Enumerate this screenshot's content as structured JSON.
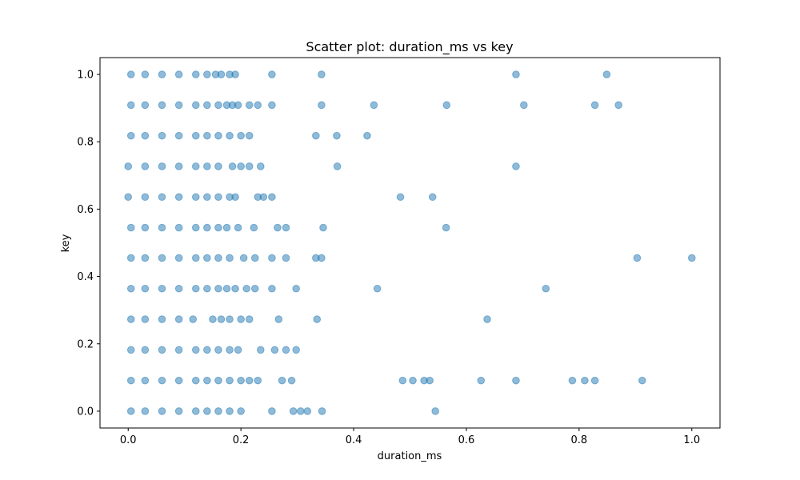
{
  "chart_data": {
    "type": "scatter",
    "title": "Scatter plot: duration_ms vs key",
    "xlabel": "duration_ms",
    "ylabel": "key",
    "xlim": [
      -0.05,
      1.05
    ],
    "ylim": [
      -0.05,
      1.05
    ],
    "xticks": [
      0.0,
      0.2,
      0.4,
      0.6,
      0.8,
      1.0
    ],
    "xtick_labels": [
      "0.0",
      "0.2",
      "0.4",
      "0.6",
      "0.8",
      "1.0"
    ],
    "yticks": [
      0.0,
      0.2,
      0.4,
      0.6,
      0.8,
      1.0
    ],
    "ytick_labels": [
      "0.0",
      "0.2",
      "0.4",
      "0.6",
      "0.8",
      "1.0"
    ],
    "grid": false,
    "marker_color": "#1f77b4",
    "marker_alpha": 0.5,
    "series": [
      {
        "points": [
          {
            "x": 0.005,
            "y": 1.0
          },
          {
            "x": 0.03,
            "y": 1.0
          },
          {
            "x": 0.06,
            "y": 1.0
          },
          {
            "x": 0.09,
            "y": 1.0
          },
          {
            "x": 0.12,
            "y": 1.0
          },
          {
            "x": 0.14,
            "y": 1.0
          },
          {
            "x": 0.155,
            "y": 1.0
          },
          {
            "x": 0.165,
            "y": 1.0
          },
          {
            "x": 0.18,
            "y": 1.0
          },
          {
            "x": 0.19,
            "y": 1.0
          },
          {
            "x": 0.255,
            "y": 1.0
          },
          {
            "x": 0.343,
            "y": 1.0
          },
          {
            "x": 0.688,
            "y": 1.0
          },
          {
            "x": 0.849,
            "y": 1.0
          },
          {
            "x": 0.005,
            "y": 0.909
          },
          {
            "x": 0.03,
            "y": 0.909
          },
          {
            "x": 0.06,
            "y": 0.909
          },
          {
            "x": 0.09,
            "y": 0.909
          },
          {
            "x": 0.12,
            "y": 0.909
          },
          {
            "x": 0.14,
            "y": 0.909
          },
          {
            "x": 0.16,
            "y": 0.909
          },
          {
            "x": 0.175,
            "y": 0.909
          },
          {
            "x": 0.185,
            "y": 0.909
          },
          {
            "x": 0.195,
            "y": 0.909
          },
          {
            "x": 0.215,
            "y": 0.909
          },
          {
            "x": 0.23,
            "y": 0.909
          },
          {
            "x": 0.255,
            "y": 0.909
          },
          {
            "x": 0.343,
            "y": 0.909
          },
          {
            "x": 0.436,
            "y": 0.909
          },
          {
            "x": 0.565,
            "y": 0.909
          },
          {
            "x": 0.702,
            "y": 0.909
          },
          {
            "x": 0.828,
            "y": 0.909
          },
          {
            "x": 0.87,
            "y": 0.909
          },
          {
            "x": 0.005,
            "y": 0.818
          },
          {
            "x": 0.03,
            "y": 0.818
          },
          {
            "x": 0.06,
            "y": 0.818
          },
          {
            "x": 0.09,
            "y": 0.818
          },
          {
            "x": 0.12,
            "y": 0.818
          },
          {
            "x": 0.14,
            "y": 0.818
          },
          {
            "x": 0.16,
            "y": 0.818
          },
          {
            "x": 0.18,
            "y": 0.818
          },
          {
            "x": 0.2,
            "y": 0.818
          },
          {
            "x": 0.215,
            "y": 0.818
          },
          {
            "x": 0.333,
            "y": 0.818
          },
          {
            "x": 0.37,
            "y": 0.818
          },
          {
            "x": 0.424,
            "y": 0.818
          },
          {
            "x": 0.0,
            "y": 0.727
          },
          {
            "x": 0.03,
            "y": 0.727
          },
          {
            "x": 0.06,
            "y": 0.727
          },
          {
            "x": 0.09,
            "y": 0.727
          },
          {
            "x": 0.12,
            "y": 0.727
          },
          {
            "x": 0.14,
            "y": 0.727
          },
          {
            "x": 0.16,
            "y": 0.727
          },
          {
            "x": 0.185,
            "y": 0.727
          },
          {
            "x": 0.2,
            "y": 0.727
          },
          {
            "x": 0.215,
            "y": 0.727
          },
          {
            "x": 0.235,
            "y": 0.727
          },
          {
            "x": 0.371,
            "y": 0.727
          },
          {
            "x": 0.688,
            "y": 0.727
          },
          {
            "x": 0.0,
            "y": 0.636
          },
          {
            "x": 0.03,
            "y": 0.636
          },
          {
            "x": 0.06,
            "y": 0.636
          },
          {
            "x": 0.09,
            "y": 0.636
          },
          {
            "x": 0.12,
            "y": 0.636
          },
          {
            "x": 0.14,
            "y": 0.636
          },
          {
            "x": 0.16,
            "y": 0.636
          },
          {
            "x": 0.18,
            "y": 0.636
          },
          {
            "x": 0.19,
            "y": 0.636
          },
          {
            "x": 0.23,
            "y": 0.636
          },
          {
            "x": 0.24,
            "y": 0.636
          },
          {
            "x": 0.255,
            "y": 0.636
          },
          {
            "x": 0.483,
            "y": 0.636
          },
          {
            "x": 0.54,
            "y": 0.636
          },
          {
            "x": 0.005,
            "y": 0.545
          },
          {
            "x": 0.03,
            "y": 0.545
          },
          {
            "x": 0.06,
            "y": 0.545
          },
          {
            "x": 0.09,
            "y": 0.545
          },
          {
            "x": 0.12,
            "y": 0.545
          },
          {
            "x": 0.14,
            "y": 0.545
          },
          {
            "x": 0.16,
            "y": 0.545
          },
          {
            "x": 0.175,
            "y": 0.545
          },
          {
            "x": 0.195,
            "y": 0.545
          },
          {
            "x": 0.223,
            "y": 0.545
          },
          {
            "x": 0.265,
            "y": 0.545
          },
          {
            "x": 0.28,
            "y": 0.545
          },
          {
            "x": 0.346,
            "y": 0.545
          },
          {
            "x": 0.564,
            "y": 0.545
          },
          {
            "x": 0.005,
            "y": 0.455
          },
          {
            "x": 0.03,
            "y": 0.455
          },
          {
            "x": 0.06,
            "y": 0.455
          },
          {
            "x": 0.09,
            "y": 0.455
          },
          {
            "x": 0.12,
            "y": 0.455
          },
          {
            "x": 0.14,
            "y": 0.455
          },
          {
            "x": 0.16,
            "y": 0.455
          },
          {
            "x": 0.18,
            "y": 0.455
          },
          {
            "x": 0.205,
            "y": 0.455
          },
          {
            "x": 0.225,
            "y": 0.455
          },
          {
            "x": 0.255,
            "y": 0.455
          },
          {
            "x": 0.28,
            "y": 0.455
          },
          {
            "x": 0.333,
            "y": 0.455
          },
          {
            "x": 0.343,
            "y": 0.455
          },
          {
            "x": 0.903,
            "y": 0.455
          },
          {
            "x": 1.0,
            "y": 0.455
          },
          {
            "x": 0.005,
            "y": 0.364
          },
          {
            "x": 0.03,
            "y": 0.364
          },
          {
            "x": 0.06,
            "y": 0.364
          },
          {
            "x": 0.09,
            "y": 0.364
          },
          {
            "x": 0.12,
            "y": 0.364
          },
          {
            "x": 0.14,
            "y": 0.364
          },
          {
            "x": 0.16,
            "y": 0.364
          },
          {
            "x": 0.175,
            "y": 0.364
          },
          {
            "x": 0.19,
            "y": 0.364
          },
          {
            "x": 0.21,
            "y": 0.364
          },
          {
            "x": 0.225,
            "y": 0.364
          },
          {
            "x": 0.255,
            "y": 0.364
          },
          {
            "x": 0.298,
            "y": 0.364
          },
          {
            "x": 0.442,
            "y": 0.364
          },
          {
            "x": 0.741,
            "y": 0.364
          },
          {
            "x": 0.005,
            "y": 0.273
          },
          {
            "x": 0.03,
            "y": 0.273
          },
          {
            "x": 0.06,
            "y": 0.273
          },
          {
            "x": 0.09,
            "y": 0.273
          },
          {
            "x": 0.115,
            "y": 0.273
          },
          {
            "x": 0.15,
            "y": 0.273
          },
          {
            "x": 0.165,
            "y": 0.273
          },
          {
            "x": 0.18,
            "y": 0.273
          },
          {
            "x": 0.2,
            "y": 0.273
          },
          {
            "x": 0.215,
            "y": 0.273
          },
          {
            "x": 0.267,
            "y": 0.273
          },
          {
            "x": 0.335,
            "y": 0.273
          },
          {
            "x": 0.637,
            "y": 0.273
          },
          {
            "x": 0.005,
            "y": 0.182
          },
          {
            "x": 0.03,
            "y": 0.182
          },
          {
            "x": 0.06,
            "y": 0.182
          },
          {
            "x": 0.09,
            "y": 0.182
          },
          {
            "x": 0.12,
            "y": 0.182
          },
          {
            "x": 0.14,
            "y": 0.182
          },
          {
            "x": 0.16,
            "y": 0.182
          },
          {
            "x": 0.18,
            "y": 0.182
          },
          {
            "x": 0.195,
            "y": 0.182
          },
          {
            "x": 0.235,
            "y": 0.182
          },
          {
            "x": 0.26,
            "y": 0.182
          },
          {
            "x": 0.28,
            "y": 0.182
          },
          {
            "x": 0.298,
            "y": 0.182
          },
          {
            "x": 0.005,
            "y": 0.091
          },
          {
            "x": 0.03,
            "y": 0.091
          },
          {
            "x": 0.06,
            "y": 0.091
          },
          {
            "x": 0.09,
            "y": 0.091
          },
          {
            "x": 0.12,
            "y": 0.091
          },
          {
            "x": 0.14,
            "y": 0.091
          },
          {
            "x": 0.16,
            "y": 0.091
          },
          {
            "x": 0.18,
            "y": 0.091
          },
          {
            "x": 0.2,
            "y": 0.091
          },
          {
            "x": 0.215,
            "y": 0.091
          },
          {
            "x": 0.23,
            "y": 0.091
          },
          {
            "x": 0.273,
            "y": 0.091
          },
          {
            "x": 0.29,
            "y": 0.091
          },
          {
            "x": 0.487,
            "y": 0.091
          },
          {
            "x": 0.505,
            "y": 0.091
          },
          {
            "x": 0.525,
            "y": 0.091
          },
          {
            "x": 0.535,
            "y": 0.091
          },
          {
            "x": 0.626,
            "y": 0.091
          },
          {
            "x": 0.688,
            "y": 0.091
          },
          {
            "x": 0.788,
            "y": 0.091
          },
          {
            "x": 0.81,
            "y": 0.091
          },
          {
            "x": 0.828,
            "y": 0.091
          },
          {
            "x": 0.912,
            "y": 0.091
          },
          {
            "x": 0.005,
            "y": 0.0
          },
          {
            "x": 0.03,
            "y": 0.0
          },
          {
            "x": 0.06,
            "y": 0.0
          },
          {
            "x": 0.09,
            "y": 0.0
          },
          {
            "x": 0.12,
            "y": 0.0
          },
          {
            "x": 0.14,
            "y": 0.0
          },
          {
            "x": 0.16,
            "y": 0.0
          },
          {
            "x": 0.18,
            "y": 0.0
          },
          {
            "x": 0.2,
            "y": 0.0
          },
          {
            "x": 0.255,
            "y": 0.0
          },
          {
            "x": 0.293,
            "y": 0.0
          },
          {
            "x": 0.306,
            "y": 0.0
          },
          {
            "x": 0.318,
            "y": 0.0
          },
          {
            "x": 0.344,
            "y": 0.0
          },
          {
            "x": 0.545,
            "y": 0.0
          }
        ]
      }
    ]
  }
}
